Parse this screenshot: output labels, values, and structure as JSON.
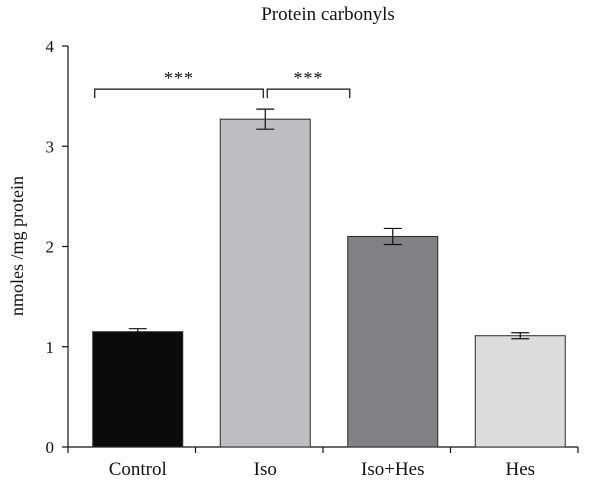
{
  "chart_data": {
    "type": "bar",
    "title": "Protein carbonyls",
    "xlabel": "",
    "ylabel": "nmoles /mg protein",
    "ylim": [
      0,
      4
    ],
    "yticks": [
      "0",
      "1",
      "2",
      "3",
      "4"
    ],
    "categories": [
      "Control",
      "Iso",
      "Iso+Hes",
      "Hes"
    ],
    "values": [
      1.15,
      3.27,
      2.1,
      1.11
    ],
    "errors": [
      0.03,
      0.1,
      0.08,
      0.03
    ],
    "bar_colors": [
      "#0b0b0c",
      "#bdbec2",
      "#808184",
      "#dcdcde"
    ],
    "significance": [
      {
        "from": 0,
        "to": 1,
        "label": "***",
        "level": 3.57
      },
      {
        "from": 1,
        "to": 2,
        "label": "***",
        "level": 3.57
      }
    ],
    "grid": false,
    "legend": "none"
  }
}
